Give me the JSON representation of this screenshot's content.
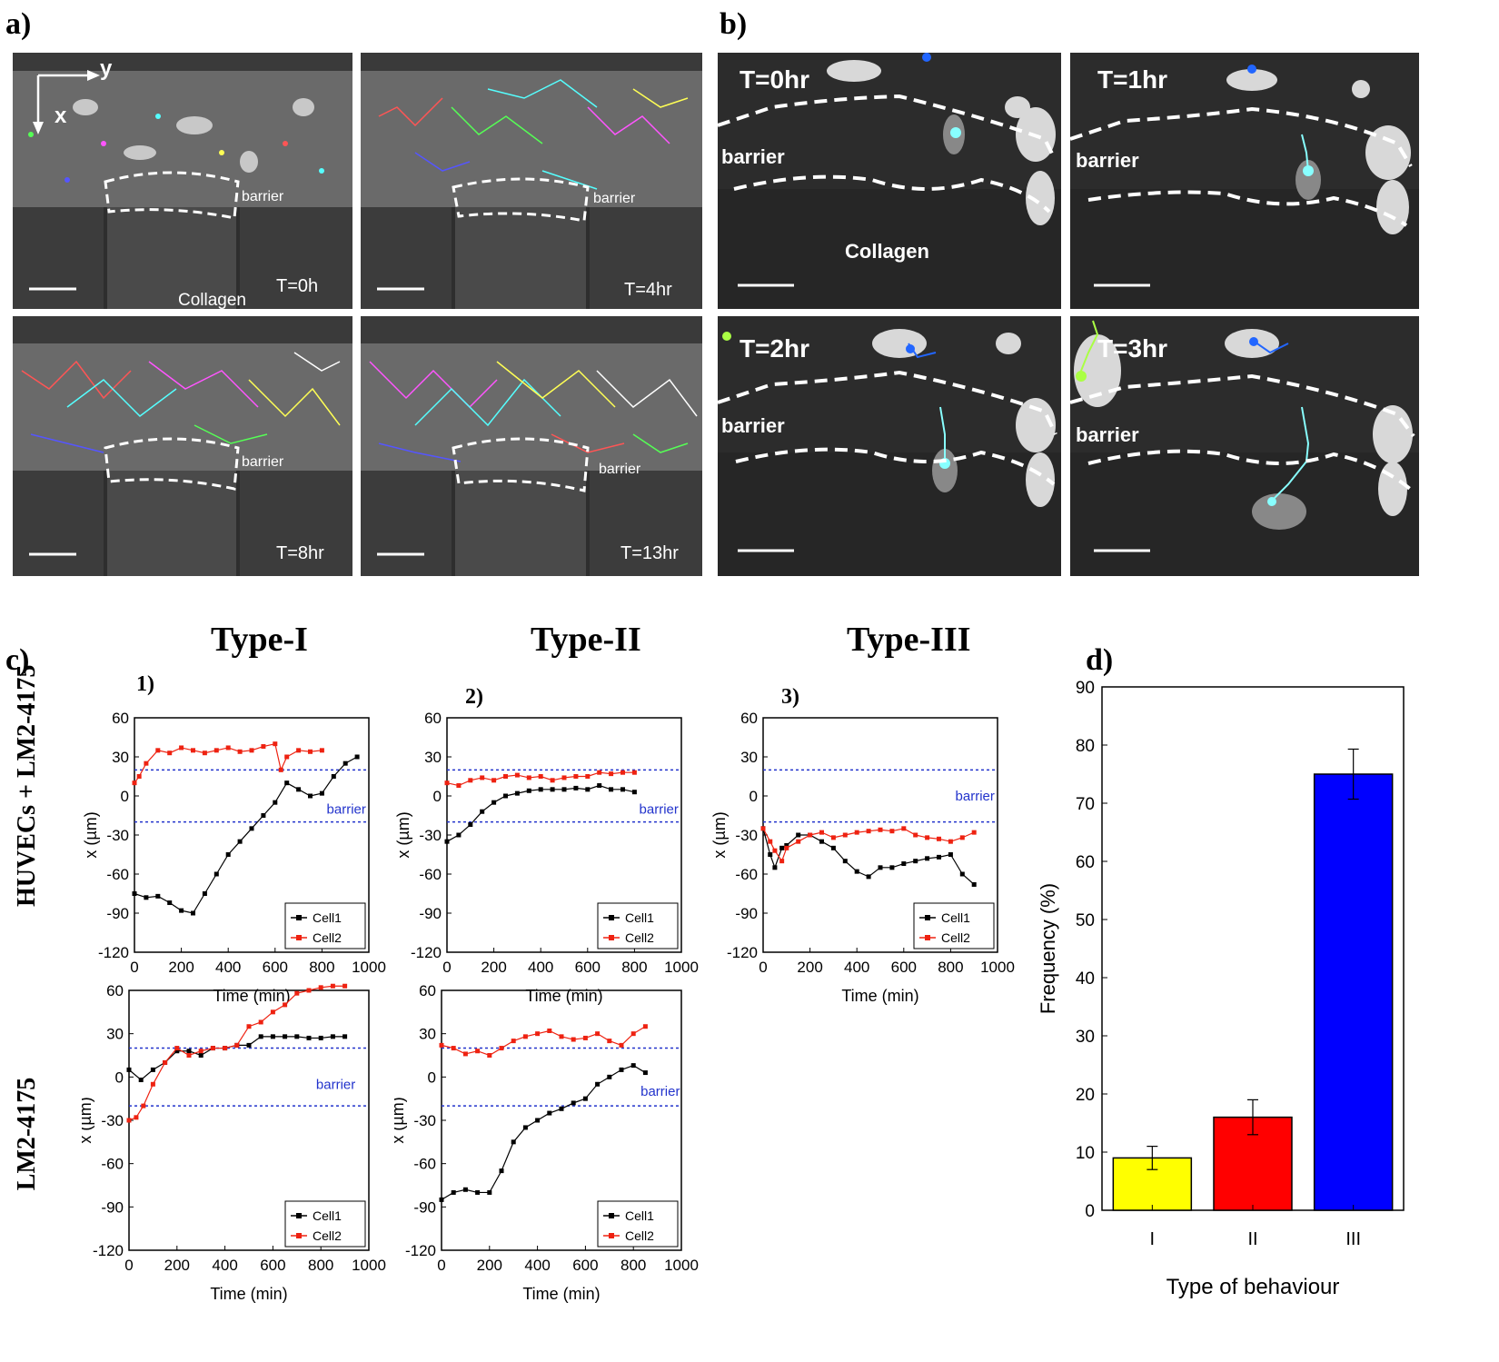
{
  "panel_labels": {
    "a": "a)",
    "b": "b)",
    "c": "c)",
    "d": "d)"
  },
  "panel_a": {
    "axis_x": "x",
    "axis_y": "y",
    "barrier_label": "barrier",
    "collagen_label": "Collagen",
    "frames": [
      "T=0h",
      "T=4hr",
      "T=8hr",
      "T=13hr"
    ]
  },
  "panel_b": {
    "barrier_label": "barrier",
    "collagen_label": "Collagen",
    "frames": [
      "T=0hr",
      "T=1hr",
      "T=2hr",
      "T=3hr"
    ]
  },
  "panel_c": {
    "types": [
      "Type-I",
      "Type-II",
      "Type-III"
    ],
    "numbers": [
      "1)",
      "2)",
      "3)"
    ],
    "rows": [
      "HUVECs + LM2-4175",
      "LM2-4175"
    ]
  },
  "colors": {
    "cell1": "#000000",
    "cell2": "#ee2211",
    "barrier_line": "#2233cc",
    "bar_I": "#ffff00",
    "bar_II": "#ff0000",
    "bar_III": "#0000ff"
  },
  "chart_data": [
    {
      "id": "c1-top",
      "type": "line",
      "xlabel": "Time (min)",
      "ylabel": "x (µm)",
      "xlim": [
        0,
        1000
      ],
      "ylim": [
        -120,
        60
      ],
      "xticks": [
        0,
        200,
        400,
        600,
        800,
        1000
      ],
      "yticks": [
        -120,
        -90,
        -60,
        -30,
        0,
        30,
        60
      ],
      "barrier_lines": [
        20,
        -20
      ],
      "annotation": "barrier",
      "annotation_pos": [
        820,
        -10
      ],
      "legend": [
        "Cell1",
        "Cell2"
      ],
      "series": [
        {
          "name": "Cell1",
          "x": [
            0,
            50,
            100,
            150,
            200,
            250,
            300,
            350,
            400,
            450,
            500,
            550,
            600,
            650,
            700,
            750,
            800,
            850,
            900,
            950
          ],
          "y": [
            -75,
            -78,
            -77,
            -82,
            -88,
            -90,
            -75,
            -60,
            -45,
            -35,
            -25,
            -15,
            -5,
            10,
            5,
            0,
            2,
            15,
            25,
            30
          ]
        },
        {
          "name": "Cell2",
          "x": [
            0,
            20,
            50,
            100,
            150,
            200,
            250,
            300,
            350,
            400,
            450,
            500,
            550,
            600,
            625,
            650,
            700,
            750,
            800
          ],
          "y": [
            10,
            15,
            25,
            35,
            33,
            37,
            35,
            33,
            35,
            37,
            34,
            35,
            38,
            40,
            20,
            30,
            35,
            34,
            35
          ]
        }
      ]
    },
    {
      "id": "c2-top",
      "type": "line",
      "xlabel": "Time (min)",
      "ylabel": "x (µm)",
      "xlim": [
        0,
        1000
      ],
      "ylim": [
        -120,
        60
      ],
      "xticks": [
        0,
        200,
        400,
        600,
        800,
        1000
      ],
      "yticks": [
        -120,
        -90,
        -60,
        -30,
        0,
        30,
        60
      ],
      "barrier_lines": [
        20,
        -20
      ],
      "annotation": "barrier",
      "annotation_pos": [
        820,
        -10
      ],
      "legend": [
        "Cell1",
        "Cell2"
      ],
      "series": [
        {
          "name": "Cell1",
          "x": [
            0,
            50,
            100,
            150,
            200,
            250,
            300,
            350,
            400,
            450,
            500,
            550,
            600,
            650,
            700,
            750,
            800
          ],
          "y": [
            -35,
            -30,
            -22,
            -12,
            -5,
            0,
            2,
            4,
            5,
            5,
            5,
            6,
            5,
            8,
            5,
            5,
            3
          ]
        },
        {
          "name": "Cell2",
          "x": [
            0,
            50,
            100,
            150,
            200,
            250,
            300,
            350,
            400,
            450,
            500,
            550,
            600,
            650,
            700,
            750,
            800
          ],
          "y": [
            10,
            8,
            12,
            14,
            12,
            15,
            16,
            14,
            15,
            12,
            14,
            15,
            15,
            18,
            17,
            18,
            18
          ]
        }
      ]
    },
    {
      "id": "c3-top",
      "type": "line",
      "xlabel": "Time (min)",
      "ylabel": "x (µm)",
      "xlim": [
        0,
        1000
      ],
      "ylim": [
        -120,
        60
      ],
      "xticks": [
        0,
        200,
        400,
        600,
        800,
        1000
      ],
      "yticks": [
        -120,
        -90,
        -60,
        -30,
        0,
        30,
        60
      ],
      "barrier_lines": [
        20,
        -20
      ],
      "annotation": "barrier",
      "annotation_pos": [
        820,
        0
      ],
      "legend": [
        "Cell1",
        "Cell2"
      ],
      "series": [
        {
          "name": "Cell1",
          "x": [
            0,
            30,
            50,
            80,
            100,
            150,
            200,
            250,
            300,
            350,
            400,
            450,
            500,
            550,
            600,
            650,
            700,
            750,
            800,
            850,
            900
          ],
          "y": [
            -25,
            -45,
            -55,
            -40,
            -38,
            -30,
            -30,
            -35,
            -40,
            -50,
            -58,
            -62,
            -55,
            -55,
            -52,
            -50,
            -48,
            -47,
            -45,
            -60,
            -68
          ]
        },
        {
          "name": "Cell2",
          "x": [
            0,
            30,
            50,
            80,
            100,
            150,
            200,
            250,
            300,
            350,
            400,
            450,
            500,
            550,
            600,
            650,
            700,
            750,
            800,
            850,
            900
          ],
          "y": [
            -25,
            -35,
            -42,
            -50,
            -40,
            -35,
            -30,
            -28,
            -32,
            -30,
            -28,
            -27,
            -26,
            -27,
            -25,
            -30,
            -32,
            -33,
            -35,
            -32,
            -28
          ]
        }
      ]
    },
    {
      "id": "c1-bottom",
      "type": "line",
      "xlabel": "Time (min)",
      "ylabel": "x (µm)",
      "xlim": [
        0,
        1000
      ],
      "ylim": [
        -120,
        60
      ],
      "xticks": [
        0,
        200,
        400,
        600,
        800,
        1000
      ],
      "yticks": [
        -120,
        -90,
        -60,
        -30,
        0,
        30,
        60
      ],
      "barrier_lines": [
        20,
        -20
      ],
      "annotation": "barrier",
      "annotation_pos": [
        780,
        -5
      ],
      "legend": [
        "Cell1",
        "Cell2"
      ],
      "series": [
        {
          "name": "Cell1",
          "x": [
            0,
            50,
            100,
            150,
            200,
            250,
            300,
            350,
            400,
            450,
            500,
            550,
            600,
            650,
            700,
            750,
            800,
            850,
            900
          ],
          "y": [
            5,
            -2,
            5,
            10,
            18,
            18,
            15,
            20,
            20,
            22,
            22,
            28,
            28,
            28,
            28,
            27,
            27,
            28,
            28
          ]
        },
        {
          "name": "Cell2",
          "x": [
            0,
            30,
            60,
            100,
            150,
            200,
            250,
            300,
            350,
            400,
            450,
            500,
            550,
            600,
            650,
            700,
            750,
            800,
            850,
            900
          ],
          "y": [
            -30,
            -28,
            -20,
            -5,
            10,
            20,
            15,
            18,
            20,
            20,
            22,
            35,
            38,
            45,
            50,
            58,
            60,
            62,
            63,
            63
          ]
        }
      ]
    },
    {
      "id": "c2-bottom",
      "type": "line",
      "xlabel": "Time (min)",
      "ylabel": "x (µm)",
      "xlim": [
        0,
        1000
      ],
      "ylim": [
        -120,
        60
      ],
      "xticks": [
        0,
        200,
        400,
        600,
        800,
        1000
      ],
      "yticks": [
        -120,
        -90,
        -60,
        -30,
        0,
        30,
        60
      ],
      "barrier_lines": [
        20,
        -20
      ],
      "annotation": "barrier",
      "annotation_pos": [
        830,
        -10
      ],
      "legend": [
        "Cell1",
        "Cell2"
      ],
      "series": [
        {
          "name": "Cell1",
          "x": [
            0,
            50,
            100,
            150,
            200,
            250,
            300,
            350,
            400,
            450,
            500,
            550,
            600,
            650,
            700,
            750,
            800,
            850
          ],
          "y": [
            -85,
            -80,
            -78,
            -80,
            -80,
            -65,
            -45,
            -35,
            -30,
            -25,
            -22,
            -18,
            -15,
            -5,
            0,
            5,
            8,
            3
          ]
        },
        {
          "name": "Cell2",
          "x": [
            0,
            50,
            100,
            150,
            200,
            250,
            300,
            350,
            400,
            450,
            500,
            550,
            600,
            650,
            700,
            750,
            800,
            850
          ],
          "y": [
            22,
            20,
            16,
            18,
            15,
            20,
            25,
            28,
            30,
            32,
            28,
            26,
            27,
            30,
            25,
            22,
            30,
            35
          ]
        }
      ]
    },
    {
      "id": "d",
      "type": "bar",
      "categories": [
        "I",
        "II",
        "III"
      ],
      "values": [
        9,
        16,
        75
      ],
      "errors": [
        2,
        3,
        4.3
      ],
      "xlabel": "Type of behaviour",
      "ylabel": "Frequency (%)",
      "ylim": [
        0,
        90
      ],
      "yticks": [
        0,
        10,
        20,
        30,
        40,
        50,
        60,
        70,
        80,
        90
      ]
    }
  ]
}
